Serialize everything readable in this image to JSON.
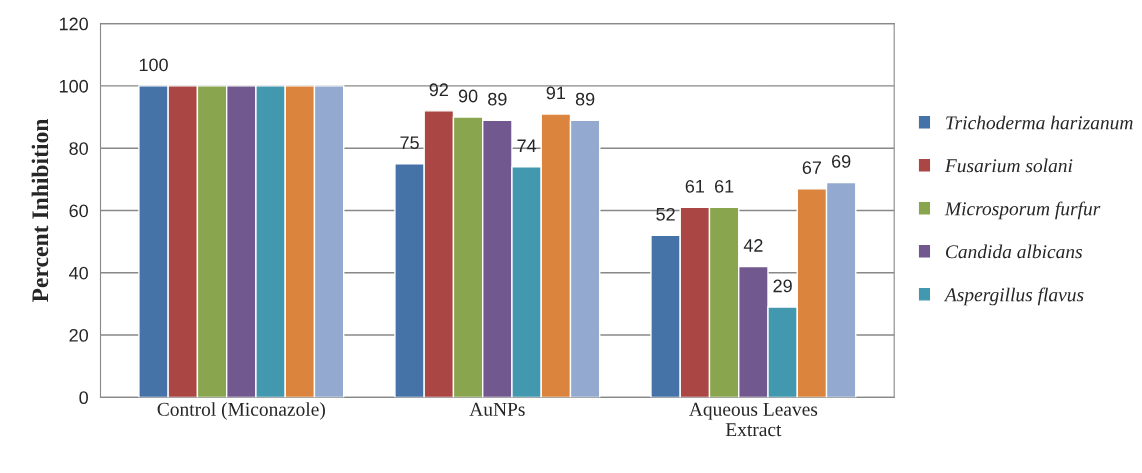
{
  "chart_data": {
    "type": "bar",
    "ylabel": "Percent Inhibition",
    "categories": [
      "Control (Miconazole)",
      "AuNPs",
      "Aqueous Leaves\nExtract"
    ],
    "series": [
      {
        "name": "Trichoderma harizanum",
        "color": "#4572a7",
        "values": [
          100,
          75,
          52
        ],
        "value_labels": [
          "100",
          "75",
          "52"
        ]
      },
      {
        "name": "Fusarium solani",
        "color": "#aa4643",
        "values": [
          100,
          92,
          61
        ],
        "value_labels": [
          null,
          "92",
          "61"
        ]
      },
      {
        "name": "Microsporum furfur",
        "color": "#89a54e",
        "values": [
          100,
          90,
          61
        ],
        "value_labels": [
          null,
          "90",
          "61"
        ]
      },
      {
        "name": "Candida albicans",
        "color": "#71588f",
        "values": [
          100,
          89,
          42
        ],
        "value_labels": [
          null,
          "89",
          "42"
        ]
      },
      {
        "name": "Aspergillus flavus",
        "color": "#4198af",
        "values": [
          100,
          74,
          29
        ],
        "value_labels": [
          null,
          "74",
          "29"
        ]
      },
      {
        "color": "#db843d",
        "values": [
          100,
          91,
          67
        ],
        "value_labels": [
          null,
          "91",
          "67"
        ]
      },
      {
        "color": "#93a9cf",
        "values": [
          100,
          89,
          69
        ],
        "value_labels": [
          null,
          "89",
          "69"
        ]
      }
    ],
    "ylim": [
      0,
      120
    ],
    "yticks": [
      0,
      20,
      40,
      60,
      80,
      100,
      120
    ],
    "grid": "y",
    "legend": "right"
  }
}
